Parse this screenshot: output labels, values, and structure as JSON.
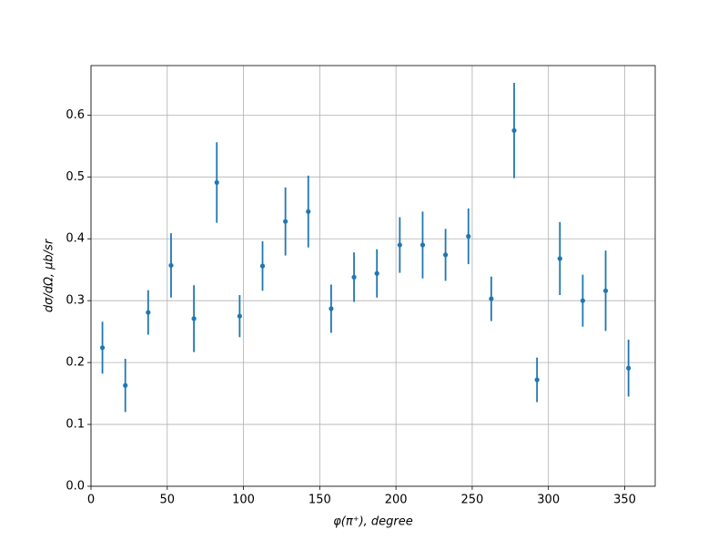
{
  "chart_data": {
    "type": "errorbar",
    "xlabel": "φ(π⁺), degree",
    "ylabel": "dσ/dΩ, μb/sr",
    "x": [
      7.5,
      22.5,
      37.5,
      52.5,
      67.5,
      82.5,
      97.5,
      112.5,
      127.5,
      142.5,
      157.5,
      172.5,
      187.5,
      202.5,
      217.5,
      232.5,
      247.5,
      262.5,
      277.5,
      292.5,
      307.5,
      322.5,
      337.5,
      352.5
    ],
    "series": [
      {
        "color": "#1f77b4",
        "values": [
          0.224,
          0.163,
          0.281,
          0.357,
          0.271,
          0.491,
          0.275,
          0.356,
          0.428,
          0.444,
          0.287,
          0.338,
          0.344,
          0.39,
          0.39,
          0.374,
          0.404,
          0.303,
          0.575,
          0.172,
          0.368,
          0.3,
          0.316,
          0.191
        ],
        "errors": [
          0.042,
          0.043,
          0.036,
          0.052,
          0.054,
          0.065,
          0.034,
          0.04,
          0.055,
          0.058,
          0.039,
          0.04,
          0.039,
          0.045,
          0.054,
          0.042,
          0.045,
          0.036,
          0.077,
          0.036,
          0.059,
          0.042,
          0.065,
          0.046
        ]
      }
    ],
    "xlim": [
      0,
      370
    ],
    "ylim": [
      0,
      0.68
    ],
    "xticks": [
      0,
      50,
      100,
      150,
      200,
      250,
      300,
      350
    ],
    "yticks": [
      {
        "value": 0,
        "label": "0.0"
      },
      0.1,
      0.2,
      0.3,
      0.4,
      0.5,
      0.6
    ],
    "grid": true
  }
}
